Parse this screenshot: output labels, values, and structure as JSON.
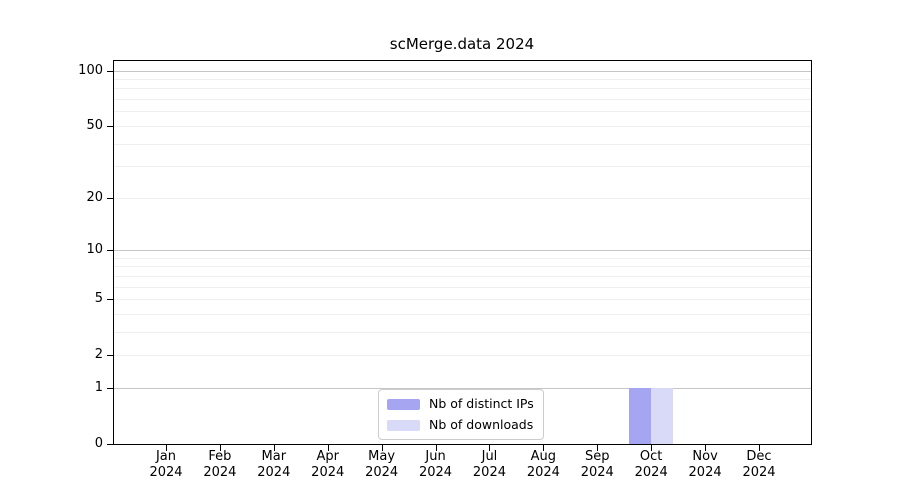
{
  "chart_data": {
    "type": "bar",
    "title": "scMerge.data 2024",
    "xlabel": "",
    "ylabel": "",
    "year_label": "2024",
    "categories": [
      "Jan",
      "Feb",
      "Mar",
      "Apr",
      "May",
      "Jun",
      "Jul",
      "Aug",
      "Sep",
      "Oct",
      "Nov",
      "Dec"
    ],
    "series": [
      {
        "name": "Nb of distinct IPs",
        "color": "#a5a5f2",
        "values": [
          0,
          0,
          0,
          0,
          0,
          0,
          0,
          0,
          0,
          1,
          0,
          0
        ]
      },
      {
        "name": "Nb of downloads",
        "color": "#d9d9f8",
        "values": [
          0,
          0,
          0,
          0,
          0,
          0,
          0,
          0,
          0,
          1,
          0,
          0
        ]
      }
    ],
    "yscale": "log1p",
    "ylim": [
      0,
      115
    ],
    "yticks": [
      0,
      1,
      2,
      5,
      10,
      20,
      50,
      100
    ],
    "gridlines": {
      "major": [
        1,
        10,
        100
      ],
      "minor": [
        2,
        3,
        4,
        5,
        6,
        7,
        8,
        9,
        20,
        30,
        40,
        50,
        60,
        70,
        80,
        90
      ]
    },
    "grid_on": true,
    "legend_position": "bottom-center-inside",
    "colors": {
      "axis": "#000000",
      "grid_major": "#c6c6c6",
      "grid_minor": "#efefef",
      "background": "#ffffff",
      "text": "#000000"
    }
  }
}
